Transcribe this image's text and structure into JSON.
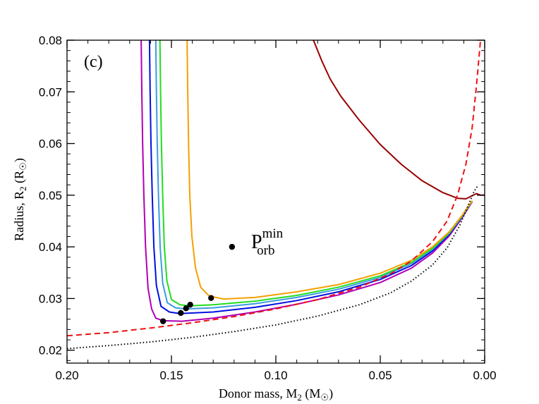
{
  "chart_data": {
    "type": "line",
    "title": "",
    "panel_label": "(c)",
    "xlabel": {
      "prefix": "Donor mass, M",
      "sub": "2",
      "mid": " (M",
      "sym": "☉",
      "suffix": ")"
    },
    "ylabel": {
      "prefix": "Radius, R",
      "sub": "2",
      "mid": " (R",
      "sym": "☉",
      "suffix": ")"
    },
    "xlim": [
      0.2,
      0.0
    ],
    "ylim": [
      0.0175,
      0.08
    ],
    "x_ticks": [
      0.2,
      0.15,
      0.1,
      0.05,
      0.0
    ],
    "x_tick_labels": [
      "0.20",
      "0.15",
      "0.10",
      "0.05",
      "0.00"
    ],
    "y_ticks": [
      0.02,
      0.03,
      0.04,
      0.05,
      0.06,
      0.07,
      0.08
    ],
    "y_tick_labels": [
      "0.02",
      "0.03",
      "0.04",
      "0.05",
      "0.06",
      "0.07",
      "0.08"
    ],
    "x_minor_step": 0.01,
    "y_minor_step": 0.002,
    "legend": {
      "marker": "dot",
      "main": "P",
      "sub": "orb",
      "sup": "min",
      "position": "center"
    },
    "legend_point": [
      0.121,
      0.04
    ],
    "series": [
      {
        "name": "magenta-track",
        "color": "#b000b5",
        "style": "solid",
        "points": [
          [
            0.1645,
            0.08
          ],
          [
            0.1642,
            0.07
          ],
          [
            0.1638,
            0.06
          ],
          [
            0.1632,
            0.05
          ],
          [
            0.1624,
            0.04
          ],
          [
            0.1612,
            0.032
          ],
          [
            0.1595,
            0.028
          ],
          [
            0.1575,
            0.0262
          ],
          [
            0.154,
            0.0257
          ],
          [
            0.145,
            0.0256
          ],
          [
            0.13,
            0.0262
          ],
          [
            0.11,
            0.0274
          ],
          [
            0.09,
            0.0289
          ],
          [
            0.07,
            0.0307
          ],
          [
            0.05,
            0.0331
          ],
          [
            0.035,
            0.0359
          ],
          [
            0.025,
            0.0388
          ],
          [
            0.017,
            0.0421
          ],
          [
            0.011,
            0.0455
          ],
          [
            0.006,
            0.0487
          ]
        ]
      },
      {
        "name": "blue-track",
        "color": "#0010e0",
        "style": "solid",
        "points": [
          [
            0.1605,
            0.08
          ],
          [
            0.1602,
            0.07
          ],
          [
            0.1598,
            0.06
          ],
          [
            0.1592,
            0.05
          ],
          [
            0.1584,
            0.04
          ],
          [
            0.1572,
            0.0325
          ],
          [
            0.155,
            0.0285
          ],
          [
            0.151,
            0.0274
          ],
          [
            0.146,
            0.0271
          ],
          [
            0.13,
            0.0274
          ],
          [
            0.11,
            0.0283
          ],
          [
            0.09,
            0.0296
          ],
          [
            0.07,
            0.0313
          ],
          [
            0.05,
            0.0337
          ],
          [
            0.035,
            0.0364
          ],
          [
            0.025,
            0.0392
          ],
          [
            0.017,
            0.0424
          ],
          [
            0.011,
            0.0457
          ],
          [
            0.006,
            0.0488
          ]
        ]
      },
      {
        "name": "lightblue-track",
        "color": "#3c9be0",
        "style": "solid",
        "points": [
          [
            0.1575,
            0.08
          ],
          [
            0.1572,
            0.07
          ],
          [
            0.1568,
            0.06
          ],
          [
            0.1562,
            0.05
          ],
          [
            0.1554,
            0.04
          ],
          [
            0.1542,
            0.033
          ],
          [
            0.152,
            0.0292
          ],
          [
            0.148,
            0.0282
          ],
          [
            0.143,
            0.028
          ],
          [
            0.13,
            0.0282
          ],
          [
            0.11,
            0.029
          ],
          [
            0.09,
            0.0302
          ],
          [
            0.07,
            0.0318
          ],
          [
            0.05,
            0.0341
          ],
          [
            0.035,
            0.0368
          ],
          [
            0.025,
            0.0395
          ],
          [
            0.017,
            0.0426
          ],
          [
            0.011,
            0.0458
          ],
          [
            0.006,
            0.0488
          ]
        ]
      },
      {
        "name": "green-track",
        "color": "#22dd22",
        "style": "solid",
        "points": [
          [
            0.1555,
            0.08
          ],
          [
            0.1552,
            0.07
          ],
          [
            0.1548,
            0.06
          ],
          [
            0.1542,
            0.05
          ],
          [
            0.1534,
            0.04
          ],
          [
            0.1522,
            0.0335
          ],
          [
            0.15,
            0.0298
          ],
          [
            0.146,
            0.0288
          ],
          [
            0.141,
            0.0286
          ],
          [
            0.13,
            0.0288
          ],
          [
            0.11,
            0.0295
          ],
          [
            0.09,
            0.0306
          ],
          [
            0.07,
            0.0322
          ],
          [
            0.05,
            0.0344
          ],
          [
            0.035,
            0.037
          ],
          [
            0.025,
            0.0397
          ],
          [
            0.017,
            0.0427
          ],
          [
            0.011,
            0.0459
          ],
          [
            0.006,
            0.0489
          ]
        ]
      },
      {
        "name": "orange-track",
        "color": "#f5a000",
        "style": "solid",
        "points": [
          [
            0.1425,
            0.08
          ],
          [
            0.1422,
            0.07
          ],
          [
            0.1418,
            0.06
          ],
          [
            0.1412,
            0.05
          ],
          [
            0.1402,
            0.042
          ],
          [
            0.1385,
            0.036
          ],
          [
            0.136,
            0.0322
          ],
          [
            0.132,
            0.0305
          ],
          [
            0.125,
            0.0299
          ],
          [
            0.11,
            0.0302
          ],
          [
            0.09,
            0.0313
          ],
          [
            0.07,
            0.0327
          ],
          [
            0.05,
            0.0349
          ],
          [
            0.035,
            0.0374
          ],
          [
            0.025,
            0.04
          ],
          [
            0.017,
            0.0429
          ],
          [
            0.011,
            0.046
          ],
          [
            0.006,
            0.0489
          ]
        ]
      },
      {
        "name": "dark-red-track",
        "color": "#990000",
        "style": "solid",
        "points": [
          [
            0.082,
            0.08
          ],
          [
            0.078,
            0.076
          ],
          [
            0.074,
            0.0725
          ],
          [
            0.069,
            0.0692
          ],
          [
            0.06,
            0.0645
          ],
          [
            0.05,
            0.0598
          ],
          [
            0.04,
            0.056
          ],
          [
            0.03,
            0.0528
          ],
          [
            0.02,
            0.0505
          ],
          [
            0.013,
            0.0494
          ],
          [
            0.009,
            0.0493
          ],
          [
            0.006,
            0.0499
          ],
          [
            0.004,
            0.0503
          ],
          [
            0.002,
            0.05
          ],
          [
            0.0,
            0.05
          ]
        ]
      },
      {
        "name": "red-dashed",
        "color": "#ee1111",
        "style": "dashed",
        "points": [
          [
            0.2,
            0.0228
          ],
          [
            0.18,
            0.0234
          ],
          [
            0.16,
            0.0243
          ],
          [
            0.14,
            0.0253
          ],
          [
            0.12,
            0.0265
          ],
          [
            0.1,
            0.028
          ],
          [
            0.08,
            0.0298
          ],
          [
            0.06,
            0.0322
          ],
          [
            0.045,
            0.0348
          ],
          [
            0.035,
            0.0373
          ],
          [
            0.025,
            0.041
          ],
          [
            0.018,
            0.045
          ],
          [
            0.013,
            0.05
          ],
          [
            0.009,
            0.056
          ],
          [
            0.006,
            0.063
          ],
          [
            0.004,
            0.071
          ],
          [
            0.002,
            0.08
          ]
        ]
      },
      {
        "name": "black-dotted",
        "color": "#000000",
        "style": "dotted",
        "points": [
          [
            0.2,
            0.0203
          ],
          [
            0.18,
            0.0209
          ],
          [
            0.16,
            0.0216
          ],
          [
            0.14,
            0.0225
          ],
          [
            0.12,
            0.0236
          ],
          [
            0.1,
            0.0249
          ],
          [
            0.08,
            0.0266
          ],
          [
            0.06,
            0.0288
          ],
          [
            0.045,
            0.0311
          ],
          [
            0.035,
            0.0334
          ],
          [
            0.025,
            0.0365
          ],
          [
            0.018,
            0.0398
          ],
          [
            0.012,
            0.0441
          ],
          [
            0.008,
            0.0479
          ],
          [
            0.005,
            0.0508
          ],
          [
            0.003,
            0.052
          ]
        ]
      }
    ],
    "pmin_points": [
      [
        0.154,
        0.0256
      ],
      [
        0.1455,
        0.0272
      ],
      [
        0.143,
        0.0281
      ],
      [
        0.141,
        0.0288
      ],
      [
        0.131,
        0.0301
      ]
    ]
  }
}
